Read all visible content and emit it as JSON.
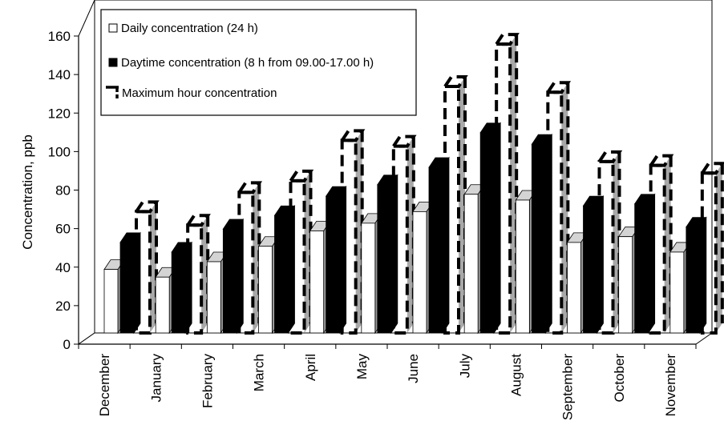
{
  "chart_data": {
    "type": "bar",
    "style": "3d-clustered-column",
    "ylabel": "Concentration, ppb",
    "xlabel": "",
    "ylim": [
      0,
      160
    ],
    "yticks": [
      0,
      20,
      40,
      60,
      80,
      100,
      120,
      140,
      160
    ],
    "grid": false,
    "legend_position": "top-left",
    "categories": [
      "December",
      "January",
      "February",
      "March",
      "April",
      "May",
      "June",
      "July",
      "August",
      "September",
      "October",
      "November"
    ],
    "series": [
      {
        "name": "Daily concentration (24 h)",
        "style": "white",
        "values": [
          33,
          29,
          37,
          45,
          53,
          57,
          63,
          72,
          69,
          47,
          50,
          42
        ]
      },
      {
        "name": "Daytime concentration (8 h from 09.00-17.00 h)",
        "style": "black",
        "values": [
          47,
          42,
          54,
          61,
          71,
          77,
          86,
          104,
          98,
          66,
          67,
          55
        ]
      },
      {
        "name": "Maximum hour concentration",
        "style": "dashed",
        "values": [
          63,
          56,
          73,
          79,
          100,
          97,
          128,
          150,
          125,
          89,
          87,
          83
        ]
      }
    ]
  }
}
